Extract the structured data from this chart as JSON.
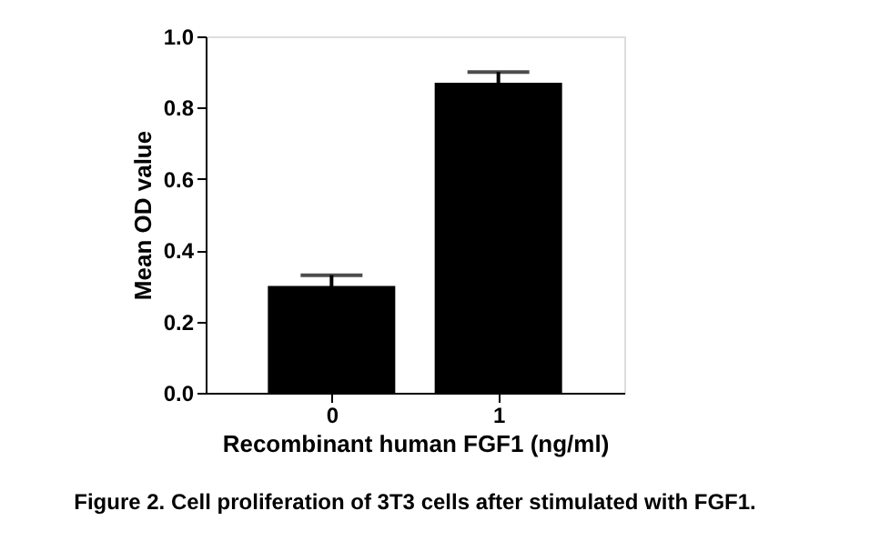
{
  "chart_data": {
    "type": "bar",
    "xlabel": "Recombinant human FGF1 (ng/ml)",
    "ylabel": "Mean OD value",
    "categories": [
      "0",
      "1"
    ],
    "values": [
      0.3,
      0.87
    ],
    "errors": [
      0.03,
      0.03
    ],
    "color": "#000000",
    "ylim": [
      0,
      1.0
    ],
    "yticks": [
      {
        "value": 0,
        "label": "0.0"
      },
      {
        "value": 0.2,
        "label": "0.2"
      },
      {
        "value": 0.4,
        "label": "0.4"
      },
      {
        "value": 0.6,
        "label": "0.6"
      },
      {
        "value": 0.8,
        "label": "0.8"
      },
      {
        "value": 1.0,
        "label": "1.0"
      }
    ],
    "grid": false,
    "annotations": [
      "Figure 2. Cell proliferation of 3T3 cells after stimulated with FGF1."
    ]
  }
}
